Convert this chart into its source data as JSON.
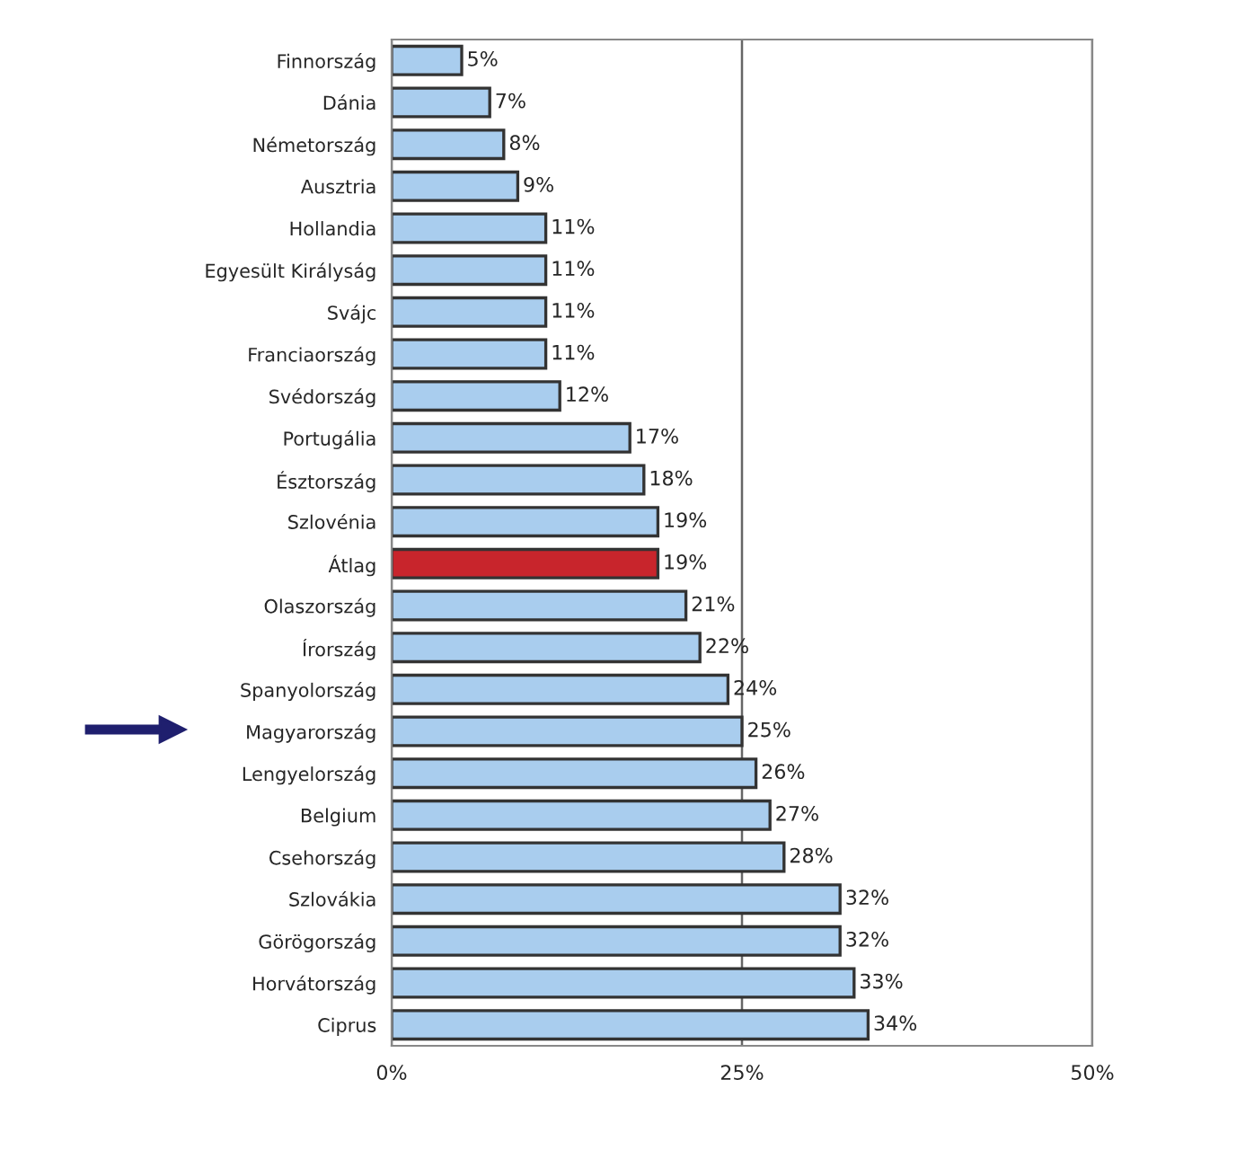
{
  "chart_data": {
    "type": "bar",
    "orientation": "horizontal",
    "categories": [
      "Finnország",
      "Dánia",
      "Németország",
      "Ausztria",
      "Hollandia",
      "Egyesült Királyság",
      "Svájc",
      "Franciaország",
      "Svédország",
      "Portugália",
      "Észtország",
      "Szlovénia",
      "Átlag",
      "Olaszország",
      "Írország",
      "Spanyolország",
      "Magyarország",
      "Lengyelország",
      "Belgium",
      "Csehország",
      "Szlovákia",
      "Görögország",
      "Horvátország",
      "Ciprus"
    ],
    "values": [
      5,
      7,
      8,
      9,
      11,
      11,
      11,
      11,
      12,
      17,
      18,
      19,
      19,
      21,
      22,
      24,
      25,
      26,
      27,
      28,
      32,
      32,
      33,
      34
    ],
    "value_labels": [
      "5%",
      "7%",
      "8%",
      "9%",
      "11%",
      "11%",
      "11%",
      "11%",
      "12%",
      "17%",
      "18%",
      "19%",
      "19%",
      "21%",
      "22%",
      "24%",
      "25%",
      "26%",
      "27%",
      "28%",
      "32%",
      "32%",
      "33%",
      "34%"
    ],
    "colors": [
      "#a9cdee",
      "#a9cdee",
      "#a9cdee",
      "#a9cdee",
      "#a9cdee",
      "#a9cdee",
      "#a9cdee",
      "#a9cdee",
      "#a9cdee",
      "#a9cdee",
      "#a9cdee",
      "#a9cdee",
      "#c8252c",
      "#a9cdee",
      "#a9cdee",
      "#a9cdee",
      "#a9cdee",
      "#a9cdee",
      "#a9cdee",
      "#a9cdee",
      "#a9cdee",
      "#a9cdee",
      "#a9cdee",
      "#a9cdee"
    ],
    "xlim": [
      0,
      50
    ],
    "xticks": [
      {
        "value": 0,
        "label": "0%"
      },
      {
        "value": 25,
        "label": "25%"
      },
      {
        "value": 50,
        "label": "50%"
      }
    ],
    "grid": "x"
  }
}
